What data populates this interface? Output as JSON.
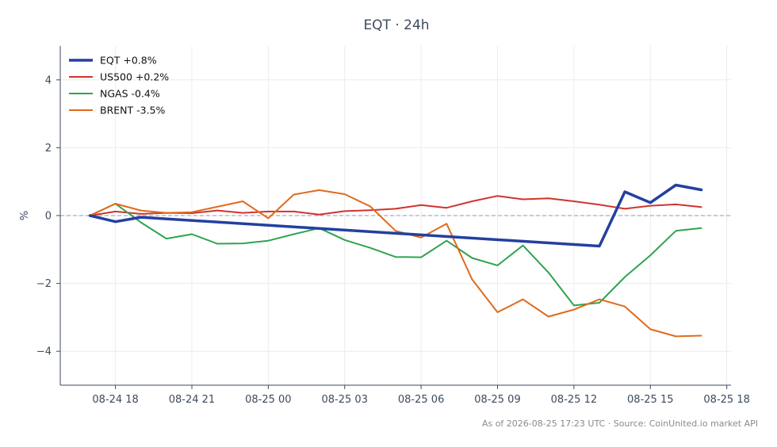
{
  "chart_data": {
    "type": "line",
    "title": "EQT · 24h",
    "xlabel": "",
    "ylabel": "%",
    "footer": "As of 2026-08-25 17:23 UTC · Source: CoinUnited.io market API",
    "x": [
      "2026-08-24 17:00",
      "2026-08-24 18:00",
      "2026-08-24 19:00",
      "2026-08-24 20:00",
      "2026-08-24 21:00",
      "2026-08-24 22:00",
      "2026-08-24 23:00",
      "2026-08-25 00:00",
      "2026-08-25 01:00",
      "2026-08-25 02:00",
      "2026-08-25 03:00",
      "2026-08-25 04:00",
      "2026-08-25 05:00",
      "2026-08-25 06:00",
      "2026-08-25 07:00",
      "2026-08-25 08:00",
      "2026-08-25 09:00",
      "2026-08-25 10:00",
      "2026-08-25 11:00",
      "2026-08-25 12:00",
      "2026-08-25 13:00",
      "2026-08-25 14:00",
      "2026-08-25 15:00",
      "2026-08-25 16:00",
      "2026-08-25 17:00"
    ],
    "x_ticks": [
      "08-24 18",
      "08-24 21",
      "08-25 00",
      "08-25 03",
      "08-25 06",
      "08-25 09",
      "08-25 12",
      "08-25 15",
      "08-25 18"
    ],
    "x_range": [
      "2026-08-24 15:50",
      "2026-08-25 18:10"
    ],
    "y_ticks": [
      4,
      2,
      0,
      -2,
      -4
    ],
    "y_tick_labels": [
      "4",
      "2",
      "0",
      "−2",
      "−4"
    ],
    "ylim": [
      -5,
      5
    ],
    "grid": true,
    "legend_position": "top-left",
    "zero_line": true,
    "series": [
      {
        "name": "EQT +0.8%",
        "color": "#2340a0",
        "width": 3.5,
        "x": [
          "2026-08-24 17:00",
          "2026-08-24 18:00",
          "2026-08-24 19:00",
          "2026-08-25 13:00",
          "2026-08-25 14:00",
          "2026-08-25 15:00",
          "2026-08-25 16:00",
          "2026-08-25 17:00"
        ],
        "values": [
          0.0,
          -0.18,
          -0.05,
          -0.9,
          0.7,
          0.38,
          0.9,
          0.76
        ]
      },
      {
        "name": "US500 +0.2%",
        "color": "#d0332f",
        "width": 2,
        "values": [
          0.0,
          0.12,
          0.05,
          0.08,
          0.07,
          0.15,
          0.08,
          0.12,
          0.12,
          0.03,
          0.13,
          0.16,
          0.2,
          0.31,
          0.23,
          0.42,
          0.58,
          0.48,
          0.51,
          0.42,
          0.32,
          0.2,
          0.29,
          0.33,
          0.25
        ]
      },
      {
        "name": "NGAS -0.4%",
        "color": "#2ea44f",
        "width": 2,
        "values": [
          0.0,
          0.35,
          -0.2,
          -0.68,
          -0.55,
          -0.83,
          -0.82,
          -0.74,
          -0.55,
          -0.37,
          -0.72,
          -0.95,
          -1.22,
          -1.23,
          -0.74,
          -1.25,
          -1.47,
          -0.88,
          -1.68,
          -2.65,
          -2.57,
          -1.81,
          -1.17,
          -0.45,
          -0.37
        ]
      },
      {
        "name": "BRENT -3.5%",
        "color": "#e06a1c",
        "width": 2,
        "values": [
          0.0,
          0.35,
          0.15,
          0.08,
          0.1,
          0.26,
          0.42,
          -0.08,
          0.62,
          0.75,
          0.63,
          0.27,
          -0.45,
          -0.65,
          -0.24,
          -1.88,
          -2.85,
          -2.47,
          -2.98,
          -2.77,
          -2.47,
          -2.68,
          -3.35,
          -3.56,
          -3.54
        ]
      }
    ]
  }
}
